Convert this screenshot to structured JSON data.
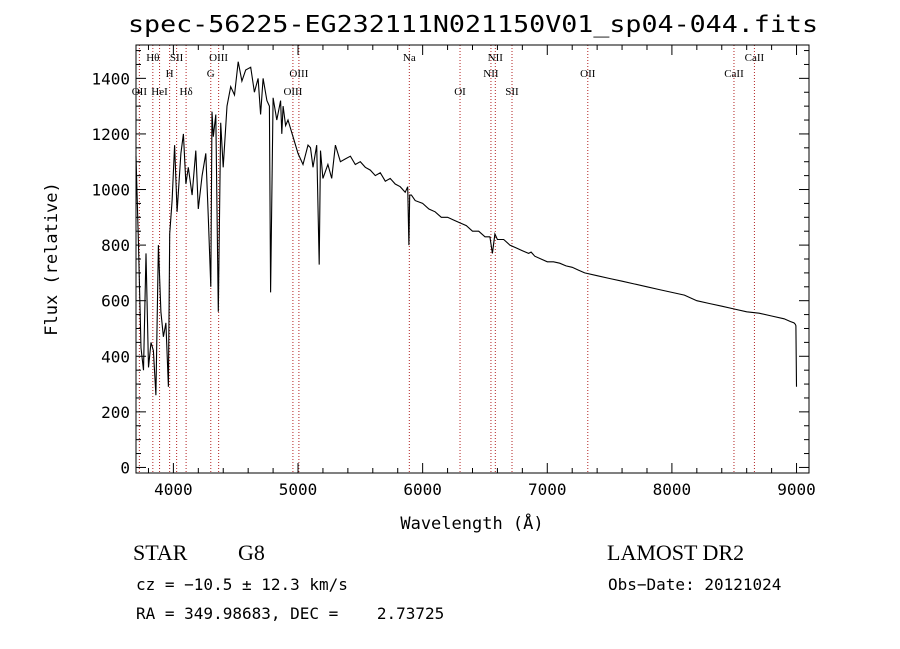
{
  "chart_data": {
    "type": "line",
    "title": "spec-56225-EG232111N021150V01_sp04-044.fits",
    "xlabel": "Wavelength (Å)",
    "ylabel": "Flux (relative)",
    "xlim": [
      3700,
      9100
    ],
    "ylim": [
      -20,
      1520
    ],
    "xticks": [
      4000,
      5000,
      6000,
      7000,
      8000,
      9000
    ],
    "yticks": [
      0,
      200,
      400,
      600,
      800,
      1000,
      1200,
      1400
    ],
    "grid": false,
    "series": [
      {
        "name": "spectrum",
        "x": [
          3700,
          3720,
          3740,
          3760,
          3780,
          3800,
          3820,
          3840,
          3860,
          3880,
          3900,
          3920,
          3940,
          3960,
          3970,
          3990,
          4010,
          4030,
          4060,
          4080,
          4100,
          4120,
          4150,
          4180,
          4200,
          4230,
          4260,
          4280,
          4300,
          4310,
          4320,
          4340,
          4360,
          4380,
          4400,
          4430,
          4460,
          4490,
          4520,
          4550,
          4580,
          4620,
          4650,
          4680,
          4700,
          4720,
          4750,
          4770,
          4780,
          4800,
          4830,
          4860,
          4870,
          4880,
          4900,
          4920,
          4960,
          5000,
          5040,
          5080,
          5100,
          5120,
          5150,
          5170,
          5180,
          5200,
          5240,
          5270,
          5300,
          5340,
          5380,
          5420,
          5460,
          5500,
          5540,
          5580,
          5620,
          5660,
          5700,
          5740,
          5780,
          5820,
          5860,
          5880,
          5890,
          5896,
          5910,
          5940,
          6000,
          6050,
          6100,
          6150,
          6200,
          6250,
          6300,
          6350,
          6400,
          6450,
          6500,
          6540,
          6560,
          6580,
          6600,
          6650,
          6700,
          6750,
          6800,
          6850,
          6870,
          6900,
          6950,
          7000,
          7050,
          7100,
          7150,
          7200,
          7250,
          7300,
          7400,
          7500,
          7600,
          7700,
          7800,
          7900,
          8000,
          8100,
          8200,
          8300,
          8400,
          8500,
          8600,
          8700,
          8800,
          8900,
          8950,
          8980,
          8990,
          8995,
          9000
        ],
        "values": [
          1120,
          800,
          430,
          350,
          770,
          360,
          450,
          420,
          260,
          800,
          560,
          470,
          520,
          290,
          840,
          960,
          1160,
          920,
          1130,
          1200,
          1020,
          1080,
          980,
          1140,
          930,
          1050,
          1130,
          900,
          650,
          1280,
          1190,
          1270,
          560,
          1240,
          1080,
          1300,
          1370,
          1340,
          1460,
          1390,
          1430,
          1440,
          1350,
          1400,
          1270,
          1400,
          1320,
          1300,
          630,
          1330,
          1250,
          1320,
          1200,
          1300,
          1230,
          1250,
          1190,
          1130,
          1090,
          1160,
          1150,
          1080,
          1160,
          730,
          1140,
          1040,
          1090,
          1040,
          1160,
          1100,
          1110,
          1120,
          1090,
          1100,
          1080,
          1070,
          1050,
          1060,
          1030,
          1040,
          1020,
          1010,
          990,
          1010,
          800,
          980,
          980,
          960,
          950,
          930,
          920,
          900,
          900,
          890,
          880,
          870,
          850,
          850,
          830,
          830,
          770,
          840,
          820,
          820,
          800,
          790,
          780,
          770,
          775,
          760,
          750,
          740,
          740,
          735,
          725,
          720,
          710,
          700,
          690,
          680,
          670,
          660,
          650,
          640,
          630,
          620,
          600,
          590,
          580,
          570,
          560,
          555,
          545,
          535,
          525,
          520,
          515,
          510,
          290
        ]
      }
    ],
    "lines": [
      {
        "x": 3727,
        "label": "OII",
        "row": 3
      },
      {
        "x": 3835,
        "label": "Hθ",
        "row": 1
      },
      {
        "x": 3889,
        "label": "HeI",
        "row": 3
      },
      {
        "x": 3970,
        "label": "H",
        "row": 2
      },
      {
        "x": 4026,
        "label": "SII",
        "row": 1
      },
      {
        "x": 4102,
        "label": "Hδ",
        "row": 3
      },
      {
        "x": 4300,
        "label": "G",
        "row": 2
      },
      {
        "x": 4363,
        "label": "OIII",
        "row": 1
      },
      {
        "x": 4959,
        "label": "OIII",
        "row": 3
      },
      {
        "x": 5007,
        "label": "OIII",
        "row": 2
      },
      {
        "x": 5893,
        "label": "Na",
        "row": 1
      },
      {
        "x": 6300,
        "label": "OI",
        "row": 3
      },
      {
        "x": 6548,
        "label": "NII",
        "row": 2
      },
      {
        "x": 6583,
        "label": "NII",
        "row": 1
      },
      {
        "x": 6717,
        "label": "SII",
        "row": 3
      },
      {
        "x": 7325,
        "label": "OII",
        "row": 2
      },
      {
        "x": 8498,
        "label": "CaII",
        "row": 2
      },
      {
        "x": 8662,
        "label": "CaII",
        "row": 1
      }
    ]
  },
  "info": {
    "object_class": "STAR",
    "subclass": "G8",
    "survey": "LAMOST DR2",
    "redshift": "cz = −10.5 ± 12.3 km/s",
    "obs_date": "Obs−Date: 20121024",
    "coords": "RA = 349.98683, DEC =    2.73725"
  },
  "colors": {
    "line": "#000000",
    "marker": "#b22222"
  }
}
